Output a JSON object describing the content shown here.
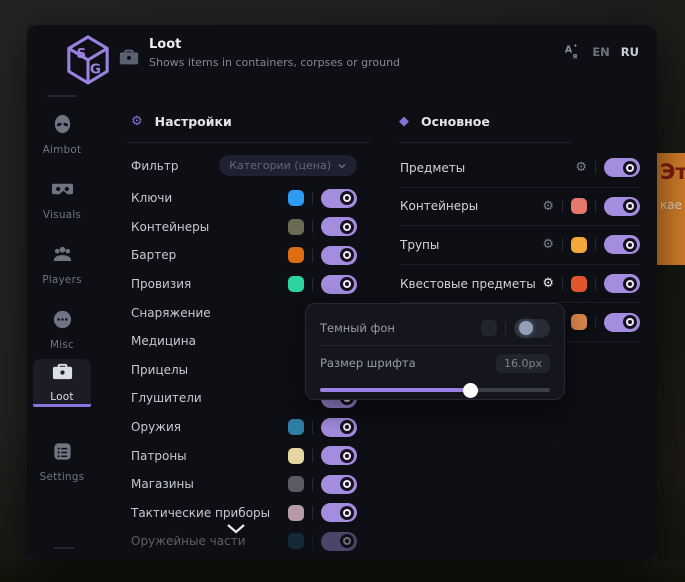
{
  "app": {
    "title": "Loot",
    "subtitle": "Shows items in containers, corpses or ground"
  },
  "language": {
    "options": [
      {
        "label": "EN",
        "active": false
      },
      {
        "label": "RU",
        "active": true
      }
    ]
  },
  "sidebar": {
    "items": [
      {
        "key": "aimbot",
        "label": "Aimbot",
        "icon": "alien-icon",
        "active": false
      },
      {
        "key": "visuals",
        "label": "Visuals",
        "icon": "goggles-icon",
        "active": false
      },
      {
        "key": "players",
        "label": "Players",
        "icon": "players-icon",
        "active": false
      },
      {
        "key": "misc",
        "label": "Misc",
        "icon": "misc-icon",
        "active": false
      },
      {
        "key": "loot",
        "label": "Loot",
        "icon": "briefcase-icon",
        "active": true
      },
      {
        "key": "settings",
        "label": "Settings",
        "icon": "settings-icon",
        "active": false
      }
    ]
  },
  "left_panel": {
    "title": "Настройки",
    "filter": {
      "label": "Фильтр",
      "value": "Категории (цена)"
    },
    "rows": [
      {
        "label": "Ключи",
        "color": "#2e9bf5",
        "on": true
      },
      {
        "label": "Контейнеры",
        "color": "#6b6b54",
        "on": true
      },
      {
        "label": "Бартер",
        "color": "#df6b12",
        "on": true
      },
      {
        "label": "Провизия",
        "color": "#2bd59e",
        "on": true
      },
      {
        "label": "Снаряжение",
        "color": null,
        "on": true
      },
      {
        "label": "Медицина",
        "color": null,
        "on": true
      },
      {
        "label": "Прицелы",
        "color": null,
        "on": true
      },
      {
        "label": "Глушители",
        "color": null,
        "on": true
      },
      {
        "label": "Оружия",
        "color": "#2f7fa6",
        "on": true
      },
      {
        "label": "Патроны",
        "color": "#e7d6a2",
        "on": true
      },
      {
        "label": "Магазины",
        "color": "#5b5b63",
        "on": true
      },
      {
        "label": "Тактические приборы",
        "color": "#b79ba6",
        "on": true
      },
      {
        "label": "Оружейные части",
        "color": "#1d4f6e",
        "on": true,
        "dimmed": true
      }
    ]
  },
  "right_panel": {
    "title": "Основное",
    "rows": [
      {
        "label": "Предметы",
        "gear": true,
        "gear_active": false,
        "color": null,
        "on": true
      },
      {
        "label": "Контейнеры",
        "gear": true,
        "gear_active": false,
        "color": "#e4796b",
        "on": true
      },
      {
        "label": "Трупы",
        "gear": true,
        "gear_active": false,
        "color": "#f2a83b",
        "on": true
      },
      {
        "label": "Квестовые предметы",
        "gear": true,
        "gear_active": true,
        "color": "#e2562e",
        "on": true
      },
      {
        "label": "",
        "gear": false,
        "gear_active": false,
        "color": "#d9874a",
        "on": true
      }
    ]
  },
  "popup": {
    "dark_bg": {
      "label": "Темный фон",
      "swatch_color": "#23252c",
      "on": false
    },
    "font_size": {
      "label": "Размер шрифта",
      "value": "16.0px",
      "percent": 65
    }
  },
  "background_banner": {
    "line1": "Эт",
    "line2": "кае",
    "color": "#cf7c28"
  }
}
